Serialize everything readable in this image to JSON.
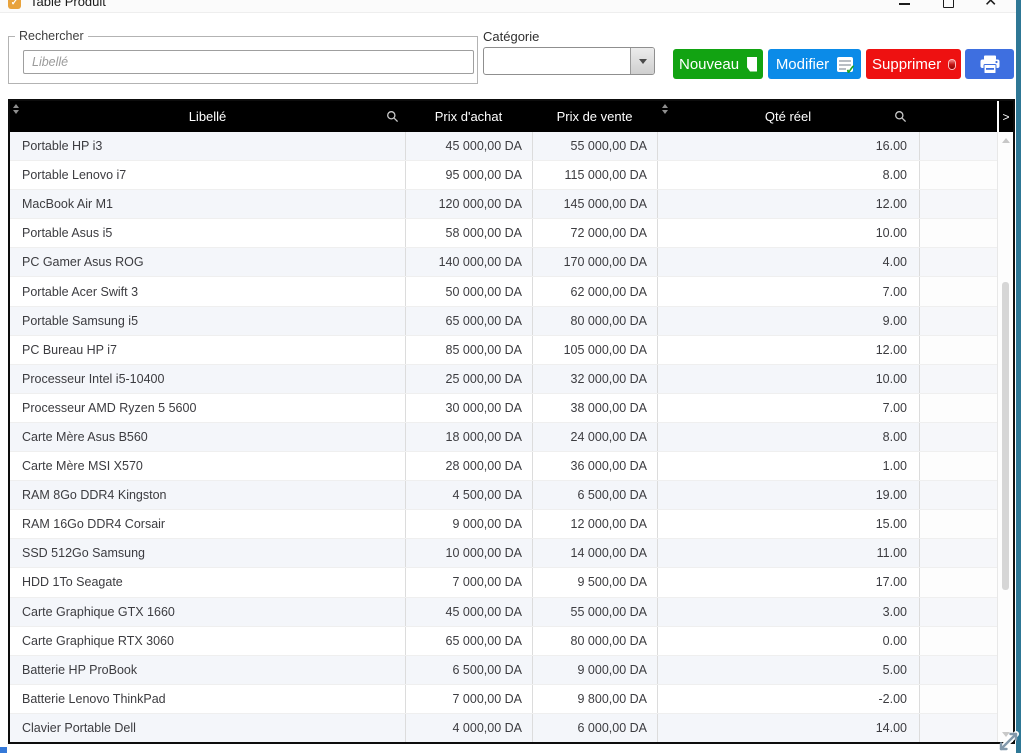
{
  "window": {
    "title": "Table Produit",
    "controls": {
      "minimize": "minimize",
      "maximize": "maximize",
      "close": "✕"
    }
  },
  "toolbar": {
    "search": {
      "group_label": "Rechercher",
      "placeholder": "Libellé",
      "value": ""
    },
    "category": {
      "label": "Catégorie",
      "value": ""
    },
    "buttons": {
      "new": "Nouveau",
      "edit": "Modifier",
      "delete": "Supprimer"
    }
  },
  "grid": {
    "columns": [
      "Libellé",
      "Prix d'achat",
      "Prix de vente",
      "Qté réel"
    ],
    "scroll_right_glyph": ">",
    "rows": [
      {
        "libelle": "Portable HP i3",
        "prix_achat": "45 000,00 DA",
        "prix_vente": "55 000,00 DA",
        "qte": "16.00"
      },
      {
        "libelle": "Portable Lenovo i7",
        "prix_achat": "95 000,00 DA",
        "prix_vente": "115 000,00 DA",
        "qte": "8.00"
      },
      {
        "libelle": "MacBook Air M1",
        "prix_achat": "120 000,00 DA",
        "prix_vente": "145 000,00 DA",
        "qte": "12.00"
      },
      {
        "libelle": "Portable Asus i5",
        "prix_achat": "58 000,00 DA",
        "prix_vente": "72 000,00 DA",
        "qte": "10.00"
      },
      {
        "libelle": "PC Gamer Asus ROG",
        "prix_achat": "140 000,00 DA",
        "prix_vente": "170 000,00 DA",
        "qte": "4.00"
      },
      {
        "libelle": "Portable Acer Swift 3",
        "prix_achat": "50 000,00 DA",
        "prix_vente": "62 000,00 DA",
        "qte": "7.00"
      },
      {
        "libelle": "Portable Samsung i5",
        "prix_achat": "65 000,00 DA",
        "prix_vente": "80 000,00 DA",
        "qte": "9.00"
      },
      {
        "libelle": "PC Bureau HP i7",
        "prix_achat": "85 000,00 DA",
        "prix_vente": "105 000,00 DA",
        "qte": "12.00"
      },
      {
        "libelle": "Processeur Intel i5-10400",
        "prix_achat": "25 000,00 DA",
        "prix_vente": "32 000,00 DA",
        "qte": "10.00"
      },
      {
        "libelle": "Processeur AMD Ryzen 5 5600",
        "prix_achat": "30 000,00 DA",
        "prix_vente": "38 000,00 DA",
        "qte": "7.00"
      },
      {
        "libelle": "Carte Mère Asus B560",
        "prix_achat": "18 000,00 DA",
        "prix_vente": "24 000,00 DA",
        "qte": "8.00"
      },
      {
        "libelle": "Carte Mère MSI X570",
        "prix_achat": "28 000,00 DA",
        "prix_vente": "36 000,00 DA",
        "qte": "1.00"
      },
      {
        "libelle": "RAM 8Go DDR4 Kingston",
        "prix_achat": "4 500,00 DA",
        "prix_vente": "6 500,00 DA",
        "qte": "19.00"
      },
      {
        "libelle": "RAM 16Go DDR4 Corsair",
        "prix_achat": "9 000,00 DA",
        "prix_vente": "12 000,00 DA",
        "qte": "15.00"
      },
      {
        "libelle": "SSD 512Go Samsung",
        "prix_achat": "10 000,00 DA",
        "prix_vente": "14 000,00 DA",
        "qte": "11.00"
      },
      {
        "libelle": "HDD 1To Seagate",
        "prix_achat": "7 000,00 DA",
        "prix_vente": "9 500,00 DA",
        "qte": "17.00"
      },
      {
        "libelle": "Carte Graphique GTX 1660",
        "prix_achat": "45 000,00 DA",
        "prix_vente": "55 000,00 DA",
        "qte": "3.00"
      },
      {
        "libelle": "Carte Graphique RTX 3060",
        "prix_achat": "65 000,00 DA",
        "prix_vente": "80 000,00 DA",
        "qte": "0.00"
      },
      {
        "libelle": "Batterie HP ProBook",
        "prix_achat": "6 500,00 DA",
        "prix_vente": "9 000,00 DA",
        "qte": "5.00"
      },
      {
        "libelle": "Batterie Lenovo ThinkPad",
        "prix_achat": "7 000,00 DA",
        "prix_vente": "9 800,00 DA",
        "qte": "-2.00"
      },
      {
        "libelle": "Clavier Portable Dell",
        "prix_achat": "4 000,00 DA",
        "prix_vente": "6 000,00 DA",
        "qte": "14.00"
      }
    ]
  },
  "colors": {
    "button_new": "#12a312",
    "button_edit": "#0b8be8",
    "button_delete": "#ee1111",
    "button_print": "#3e6fe0",
    "header_bg": "#000000",
    "row_alt": "#f4f6fa",
    "window_edge": "#2e7795",
    "title_icon": "#e8a23b"
  }
}
